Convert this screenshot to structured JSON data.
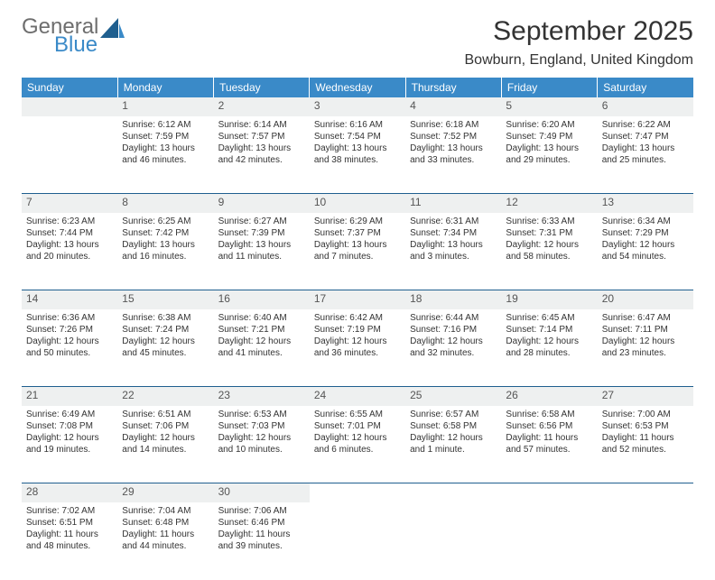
{
  "logo": {
    "text1": "General",
    "text2": "Blue",
    "icon_color": "#1f5f8f"
  },
  "title": "September 2025",
  "location": "Bowburn, England, United Kingdom",
  "header_bg": "#3a8ac8",
  "header_fg": "#ffffff",
  "daynum_bg": "#eef0f0",
  "rule_color": "#1f5f8f",
  "weekdays": [
    "Sunday",
    "Monday",
    "Tuesday",
    "Wednesday",
    "Thursday",
    "Friday",
    "Saturday"
  ],
  "weeks": [
    [
      null,
      {
        "n": "1",
        "sr": "Sunrise: 6:12 AM",
        "ss": "Sunset: 7:59 PM",
        "dl": "Daylight: 13 hours and 46 minutes."
      },
      {
        "n": "2",
        "sr": "Sunrise: 6:14 AM",
        "ss": "Sunset: 7:57 PM",
        "dl": "Daylight: 13 hours and 42 minutes."
      },
      {
        "n": "3",
        "sr": "Sunrise: 6:16 AM",
        "ss": "Sunset: 7:54 PM",
        "dl": "Daylight: 13 hours and 38 minutes."
      },
      {
        "n": "4",
        "sr": "Sunrise: 6:18 AM",
        "ss": "Sunset: 7:52 PM",
        "dl": "Daylight: 13 hours and 33 minutes."
      },
      {
        "n": "5",
        "sr": "Sunrise: 6:20 AM",
        "ss": "Sunset: 7:49 PM",
        "dl": "Daylight: 13 hours and 29 minutes."
      },
      {
        "n": "6",
        "sr": "Sunrise: 6:22 AM",
        "ss": "Sunset: 7:47 PM",
        "dl": "Daylight: 13 hours and 25 minutes."
      }
    ],
    [
      {
        "n": "7",
        "sr": "Sunrise: 6:23 AM",
        "ss": "Sunset: 7:44 PM",
        "dl": "Daylight: 13 hours and 20 minutes."
      },
      {
        "n": "8",
        "sr": "Sunrise: 6:25 AM",
        "ss": "Sunset: 7:42 PM",
        "dl": "Daylight: 13 hours and 16 minutes."
      },
      {
        "n": "9",
        "sr": "Sunrise: 6:27 AM",
        "ss": "Sunset: 7:39 PM",
        "dl": "Daylight: 13 hours and 11 minutes."
      },
      {
        "n": "10",
        "sr": "Sunrise: 6:29 AM",
        "ss": "Sunset: 7:37 PM",
        "dl": "Daylight: 13 hours and 7 minutes."
      },
      {
        "n": "11",
        "sr": "Sunrise: 6:31 AM",
        "ss": "Sunset: 7:34 PM",
        "dl": "Daylight: 13 hours and 3 minutes."
      },
      {
        "n": "12",
        "sr": "Sunrise: 6:33 AM",
        "ss": "Sunset: 7:31 PM",
        "dl": "Daylight: 12 hours and 58 minutes."
      },
      {
        "n": "13",
        "sr": "Sunrise: 6:34 AM",
        "ss": "Sunset: 7:29 PM",
        "dl": "Daylight: 12 hours and 54 minutes."
      }
    ],
    [
      {
        "n": "14",
        "sr": "Sunrise: 6:36 AM",
        "ss": "Sunset: 7:26 PM",
        "dl": "Daylight: 12 hours and 50 minutes."
      },
      {
        "n": "15",
        "sr": "Sunrise: 6:38 AM",
        "ss": "Sunset: 7:24 PM",
        "dl": "Daylight: 12 hours and 45 minutes."
      },
      {
        "n": "16",
        "sr": "Sunrise: 6:40 AM",
        "ss": "Sunset: 7:21 PM",
        "dl": "Daylight: 12 hours and 41 minutes."
      },
      {
        "n": "17",
        "sr": "Sunrise: 6:42 AM",
        "ss": "Sunset: 7:19 PM",
        "dl": "Daylight: 12 hours and 36 minutes."
      },
      {
        "n": "18",
        "sr": "Sunrise: 6:44 AM",
        "ss": "Sunset: 7:16 PM",
        "dl": "Daylight: 12 hours and 32 minutes."
      },
      {
        "n": "19",
        "sr": "Sunrise: 6:45 AM",
        "ss": "Sunset: 7:14 PM",
        "dl": "Daylight: 12 hours and 28 minutes."
      },
      {
        "n": "20",
        "sr": "Sunrise: 6:47 AM",
        "ss": "Sunset: 7:11 PM",
        "dl": "Daylight: 12 hours and 23 minutes."
      }
    ],
    [
      {
        "n": "21",
        "sr": "Sunrise: 6:49 AM",
        "ss": "Sunset: 7:08 PM",
        "dl": "Daylight: 12 hours and 19 minutes."
      },
      {
        "n": "22",
        "sr": "Sunrise: 6:51 AM",
        "ss": "Sunset: 7:06 PM",
        "dl": "Daylight: 12 hours and 14 minutes."
      },
      {
        "n": "23",
        "sr": "Sunrise: 6:53 AM",
        "ss": "Sunset: 7:03 PM",
        "dl": "Daylight: 12 hours and 10 minutes."
      },
      {
        "n": "24",
        "sr": "Sunrise: 6:55 AM",
        "ss": "Sunset: 7:01 PM",
        "dl": "Daylight: 12 hours and 6 minutes."
      },
      {
        "n": "25",
        "sr": "Sunrise: 6:57 AM",
        "ss": "Sunset: 6:58 PM",
        "dl": "Daylight: 12 hours and 1 minute."
      },
      {
        "n": "26",
        "sr": "Sunrise: 6:58 AM",
        "ss": "Sunset: 6:56 PM",
        "dl": "Daylight: 11 hours and 57 minutes."
      },
      {
        "n": "27",
        "sr": "Sunrise: 7:00 AM",
        "ss": "Sunset: 6:53 PM",
        "dl": "Daylight: 11 hours and 52 minutes."
      }
    ],
    [
      {
        "n": "28",
        "sr": "Sunrise: 7:02 AM",
        "ss": "Sunset: 6:51 PM",
        "dl": "Daylight: 11 hours and 48 minutes."
      },
      {
        "n": "29",
        "sr": "Sunrise: 7:04 AM",
        "ss": "Sunset: 6:48 PM",
        "dl": "Daylight: 11 hours and 44 minutes."
      },
      {
        "n": "30",
        "sr": "Sunrise: 7:06 AM",
        "ss": "Sunset: 6:46 PM",
        "dl": "Daylight: 11 hours and 39 minutes."
      },
      null,
      null,
      null,
      null
    ]
  ]
}
